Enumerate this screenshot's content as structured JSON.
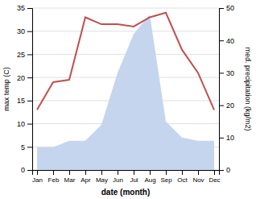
{
  "chart_data": {
    "type": "line",
    "categories": [
      "Jan",
      "Feb",
      "Mar",
      "Apr",
      "May",
      "Jun",
      "Jul",
      "Aug",
      "Sep",
      "Oct",
      "Nov",
      "Dec"
    ],
    "series": [
      {
        "type": "area",
        "color": "#c5d5ee",
        "axis": "y2",
        "values": [
          7,
          7,
          9,
          9,
          14,
          30,
          42,
          48,
          15,
          10,
          9,
          9
        ]
      },
      {
        "type": "line",
        "color": "#c0504d",
        "values": [
          13,
          19,
          19.5,
          33,
          31.5,
          31.5,
          31,
          33,
          34,
          26,
          21,
          13
        ]
      }
    ],
    "xlabel": "date (month)",
    "ylabel": "max temp (C)",
    "y2label": "med. precipitation (kg/m2)",
    "ylim": [
      0,
      35
    ],
    "yticks": [
      0,
      5,
      10,
      15,
      20,
      25,
      30,
      35
    ],
    "y2lim": [
      0,
      50
    ],
    "y2ticks": [
      0,
      10,
      20,
      30,
      40,
      50
    ],
    "grid": true
  }
}
